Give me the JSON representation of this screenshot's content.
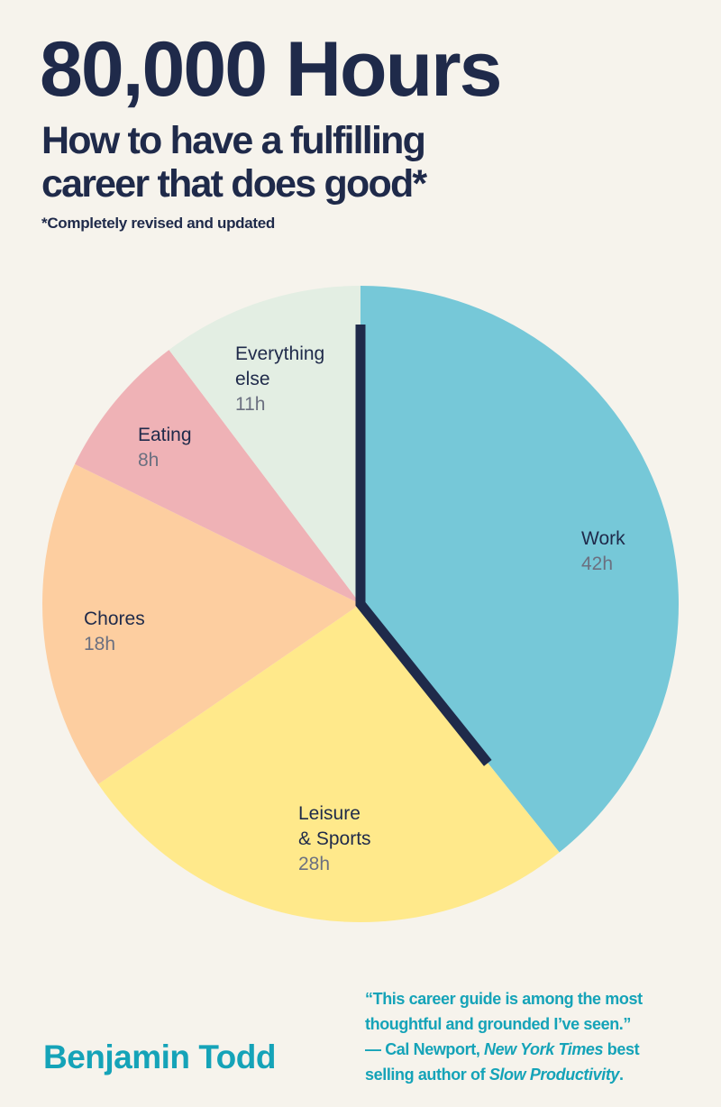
{
  "cover": {
    "title": "80,000 Hours",
    "subtitle_line1": "How to have a fulfilling",
    "subtitle_line2": "career that does good*",
    "footnote": "*Completely revised and updated",
    "author": "Benjamin Todd",
    "quote": {
      "line1": "“This career guide is among the most",
      "line2": "thoughtful and grounded I’ve seen.”",
      "attribution_prefix": "— Cal Newport, ",
      "publication": "New York Times",
      "attribution_mid": " best",
      "attribution_line2": "selling author of ",
      "book": "Slow Productivity",
      "end": "."
    }
  },
  "colors": {
    "background": "#f6f3ec",
    "navy": "#1f2a4a",
    "teal": "#15a3b8"
  },
  "chart_data": {
    "type": "pie",
    "start": "top",
    "direction": "clockwise",
    "unit": "h",
    "slices": [
      {
        "label": "Work",
        "value": 42,
        "display": "42h",
        "color": "#76c8d8"
      },
      {
        "label": "Leisure & Sports",
        "value": 28,
        "display": "28h",
        "color": "#ffe98b"
      },
      {
        "label": "Chores",
        "value": 18,
        "display": "18h",
        "color": "#fdcea0"
      },
      {
        "label": "Eating",
        "value": 8,
        "display": "8h",
        "color": "#efb2b6"
      },
      {
        "label": "Everything else",
        "value": 11,
        "display": "11h",
        "color": "#e3eee3"
      }
    ],
    "label_lines": {
      "work": [
        "Work"
      ],
      "leisure": [
        "Leisure",
        "& Sports"
      ],
      "chores": [
        "Chores"
      ],
      "eating": [
        "Eating"
      ],
      "else": [
        "Everything",
        "else"
      ]
    },
    "highlight": "Work"
  }
}
